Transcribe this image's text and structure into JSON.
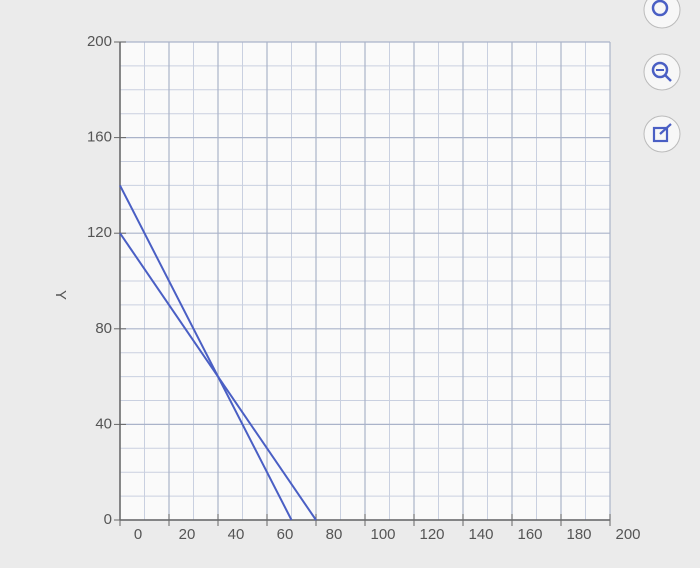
{
  "chart_data": {
    "type": "line",
    "y_label": "Y",
    "series": [
      {
        "color": "#4a5fc4",
        "x": [
          0,
          70
        ],
        "values": [
          140,
          0
        ]
      },
      {
        "color": "#4a5fc4",
        "x": [
          0,
          80
        ],
        "values": [
          120,
          0
        ]
      }
    ],
    "xlim": [
      0,
      200
    ],
    "xticks": [
      0,
      20,
      40,
      60,
      80,
      100,
      120,
      140,
      160,
      180,
      200
    ],
    "ylim": [
      0,
      200
    ],
    "yticks": [
      0,
      40,
      80,
      120,
      160,
      200
    ],
    "grid": true
  }
}
